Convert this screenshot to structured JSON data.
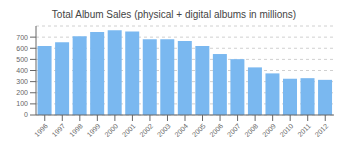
{
  "chart_data": {
    "type": "bar",
    "title": "Total Album Sales (physical + digital albums in millions)",
    "categories": [
      "1996",
      "1997",
      "1998",
      "1999",
      "2000",
      "2001",
      "2002",
      "2003",
      "2004",
      "2005",
      "2006",
      "2007",
      "2008",
      "2009",
      "2010",
      "2011",
      "2012"
    ],
    "values": [
      620,
      655,
      707,
      745,
      762,
      750,
      681,
      681,
      666,
      620,
      548,
      502,
      428,
      374,
      326,
      331,
      316
    ],
    "color": "#7ab8f0",
    "ylim": [
      0,
      800
    ],
    "yticks": [
      0,
      100,
      200,
      300,
      400,
      500,
      600,
      700
    ],
    "grid": true
  }
}
